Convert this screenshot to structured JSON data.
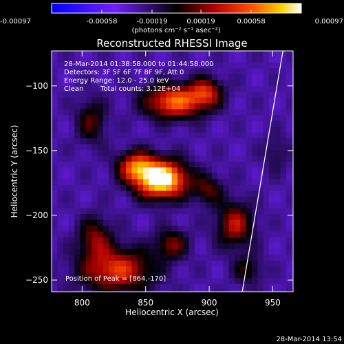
{
  "chart_data": {
    "type": "heatmap",
    "title": "Reconstructed RHESSI Image",
    "xlabel": "Heliocentric X (arcsec)",
    "ylabel": "Heliocentric Y (arcsec)",
    "xlim": [
      776,
      966
    ],
    "ylim": [
      -259,
      -73
    ],
    "x_ticks": [
      800,
      850,
      900,
      950
    ],
    "x_tick_labels": [
      "800",
      "850",
      "900",
      "950"
    ],
    "y_ticks": [
      -250,
      -200,
      -150,
      -100
    ],
    "y_tick_labels": [
      "−250",
      "−200",
      "−150",
      "−100"
    ],
    "colorbar": {
      "min": -0.00097,
      "max": 0.00097,
      "tick_values": [
        -0.00097,
        -0.00058,
        -0.00019,
        0.00019,
        0.00058,
        0.00097
      ],
      "tick_labels": [
        "-0.00097",
        "-0.00058",
        "-0.00019",
        "0.00019",
        "0.00058",
        "0.00097"
      ],
      "units_label": "(photons cm⁻² s⁻¹ asec⁻²)"
    },
    "annotations": {
      "time_range": "28-Mar-2014 01:38:58.000 to 01:44:58.000",
      "detectors": "Detectors: 3F 5F 6F 7F 8F 9F, Att 0",
      "energy_range": "Energy Range: 12.0 - 25.0 keV",
      "algorithm": "Clean",
      "total_counts": "Total counts: 3.12E+04",
      "peak": "Position of Peak = [864,-170]"
    },
    "peak_position": [
      864,
      -170
    ],
    "sources": [
      {
        "x": 860,
        "y": -170,
        "sx": 14,
        "sy": 10,
        "amp": 1.0
      },
      {
        "x": 840,
        "y": -160,
        "sx": 10,
        "sy": 8,
        "amp": 0.55
      },
      {
        "x": 870,
        "y": -110,
        "sx": 16,
        "sy": 9,
        "amp": 0.65
      },
      {
        "x": 895,
        "y": -103,
        "sx": 9,
        "sy": 8,
        "amp": 0.45
      },
      {
        "x": 825,
        "y": -240,
        "sx": 20,
        "sy": 12,
        "amp": 0.55
      },
      {
        "x": 808,
        "y": -215,
        "sx": 9,
        "sy": 11,
        "amp": 0.35
      },
      {
        "x": 918,
        "y": -205,
        "sx": 10,
        "sy": 12,
        "amp": 0.45
      },
      {
        "x": 868,
        "y": -220,
        "sx": 9,
        "sy": 8,
        "amp": 0.35
      },
      {
        "x": 897,
        "y": -178,
        "sx": 8,
        "sy": 8,
        "amp": 0.3
      },
      {
        "x": 805,
        "y": -125,
        "sx": 8,
        "sy": 12,
        "amp": 0.3
      },
      {
        "x": 928,
        "y": -240,
        "sx": 8,
        "sy": 8,
        "amp": 0.25
      },
      {
        "x": 950,
        "y": -150,
        "sx": 7,
        "sy": 10,
        "amp": 0.15
      }
    ],
    "limb": {
      "start": [
        926,
        -259
      ],
      "end": [
        958,
        -73
      ]
    }
  },
  "footer": {
    "timestamp": "28-Mar-2014 13:54"
  }
}
